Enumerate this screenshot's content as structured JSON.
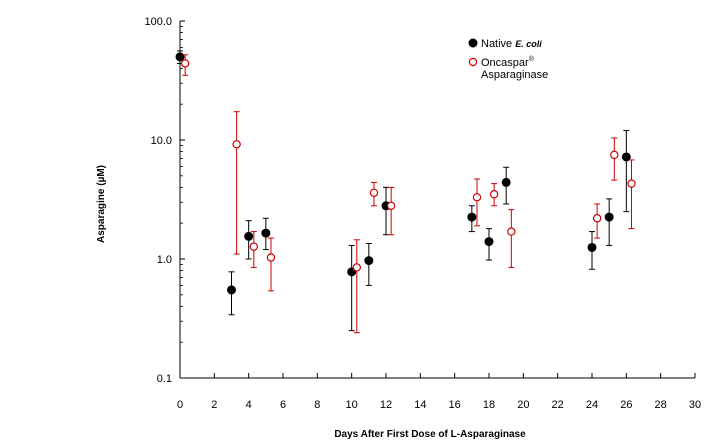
{
  "chart_data": {
    "type": "scatter",
    "title": "",
    "xlabel": "Days After First Dose of L-Asparaginase",
    "ylabel": "Asparagine (µM)",
    "xlim": [
      0,
      30
    ],
    "ylim": [
      0.1,
      100
    ],
    "yscale": "log",
    "x_ticks": [
      0,
      2,
      4,
      6,
      8,
      10,
      12,
      14,
      16,
      18,
      20,
      22,
      24,
      26,
      28,
      30
    ],
    "y_ticks": [
      0.1,
      1,
      10,
      100
    ],
    "y_tick_labels": [
      "0.1",
      "1.0",
      "10.0",
      "100.0"
    ],
    "grid": false,
    "legend_position": "top-right",
    "series": [
      {
        "name": "Native",
        "name_suffix": "E. coli",
        "marker": "filled-circle",
        "color": "#000000",
        "points": [
          {
            "x": 0,
            "y": 50,
            "lo": 44,
            "hi": 56
          },
          {
            "x": 3,
            "y": 0.55,
            "lo": 0.34,
            "hi": 0.78
          },
          {
            "x": 4,
            "y": 1.55,
            "lo": 1.0,
            "hi": 2.1
          },
          {
            "x": 5,
            "y": 1.65,
            "lo": 1.2,
            "hi": 2.2
          },
          {
            "x": 10,
            "y": 0.78,
            "lo": 0.25,
            "hi": 1.3
          },
          {
            "x": 11,
            "y": 0.97,
            "lo": 0.6,
            "hi": 1.35
          },
          {
            "x": 12,
            "y": 2.8,
            "lo": 1.6,
            "hi": 4.0
          },
          {
            "x": 17,
            "y": 2.25,
            "lo": 1.7,
            "hi": 2.8
          },
          {
            "x": 18,
            "y": 1.4,
            "lo": 0.98,
            "hi": 1.8
          },
          {
            "x": 19,
            "y": 4.4,
            "lo": 2.9,
            "hi": 5.9
          },
          {
            "x": 24,
            "y": 1.25,
            "lo": 0.82,
            "hi": 1.7
          },
          {
            "x": 25,
            "y": 2.25,
            "lo": 1.3,
            "hi": 3.2
          },
          {
            "x": 26,
            "y": 7.2,
            "lo": 2.5,
            "hi": 12
          }
        ]
      },
      {
        "name": "Oncaspar® Asparaginase",
        "marker": "open-circle",
        "color": "#cc0000",
        "points": [
          {
            "x": 0.3,
            "y": 44,
            "lo": 35,
            "hi": 52
          },
          {
            "x": 3.3,
            "y": 9.2,
            "lo": 1.1,
            "hi": 17.3
          },
          {
            "x": 4.3,
            "y": 1.27,
            "lo": 0.85,
            "hi": 1.7
          },
          {
            "x": 5.3,
            "y": 1.03,
            "lo": 0.54,
            "hi": 1.5
          },
          {
            "x": 10.3,
            "y": 0.85,
            "lo": 0.24,
            "hi": 1.45
          },
          {
            "x": 11.3,
            "y": 3.6,
            "lo": 2.8,
            "hi": 4.4
          },
          {
            "x": 12.3,
            "y": 2.8,
            "lo": 1.6,
            "hi": 4.0
          },
          {
            "x": 17.3,
            "y": 3.3,
            "lo": 1.9,
            "hi": 4.7
          },
          {
            "x": 18.3,
            "y": 3.5,
            "lo": 2.8,
            "hi": 4.3
          },
          {
            "x": 19.3,
            "y": 1.7,
            "lo": 0.85,
            "hi": 2.6
          },
          {
            "x": 24.3,
            "y": 2.2,
            "lo": 1.5,
            "hi": 2.9
          },
          {
            "x": 25.3,
            "y": 7.5,
            "lo": 4.6,
            "hi": 10.4
          },
          {
            "x": 26.3,
            "y": 4.3,
            "lo": 1.8,
            "hi": 6.8
          }
        ]
      }
    ]
  }
}
